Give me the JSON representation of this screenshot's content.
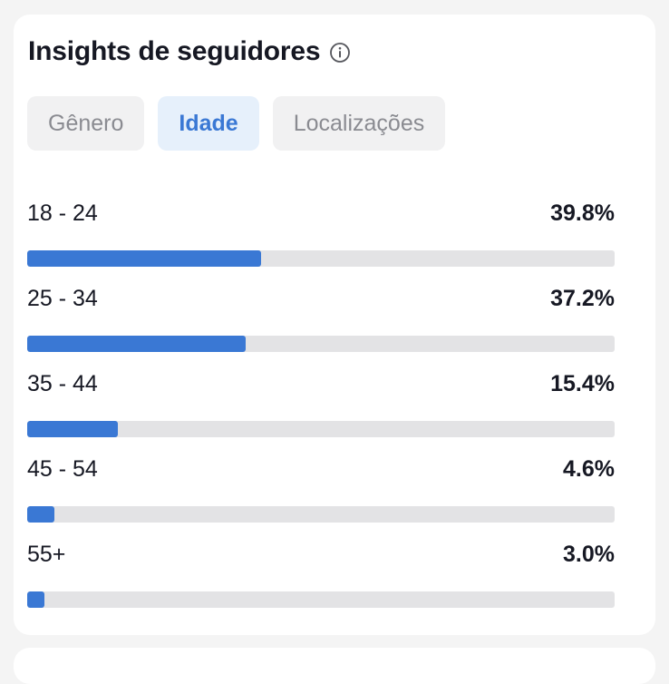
{
  "header": {
    "title": "Insights de seguidores",
    "info_icon": "info-circle-icon"
  },
  "tabs": [
    {
      "label": "Gênero",
      "active": false
    },
    {
      "label": "Idade",
      "active": true
    },
    {
      "label": "Localizações",
      "active": false
    }
  ],
  "colors": {
    "accent": "#3a78d4",
    "track": "#e3e3e5",
    "active_tab_bg": "#e6f0fb",
    "tab_bg": "#f1f1f2"
  },
  "age_groups": [
    {
      "label": "18 - 24",
      "value_text": "39.8%",
      "percent": 39.8
    },
    {
      "label": "25 - 34",
      "value_text": "37.2%",
      "percent": 37.2
    },
    {
      "label": "35 - 44",
      "value_text": "15.4%",
      "percent": 15.4
    },
    {
      "label": "45 - 54",
      "value_text": "4.6%",
      "percent": 4.6
    },
    {
      "label": "55+",
      "value_text": "3.0%",
      "percent": 3.0
    }
  ]
}
